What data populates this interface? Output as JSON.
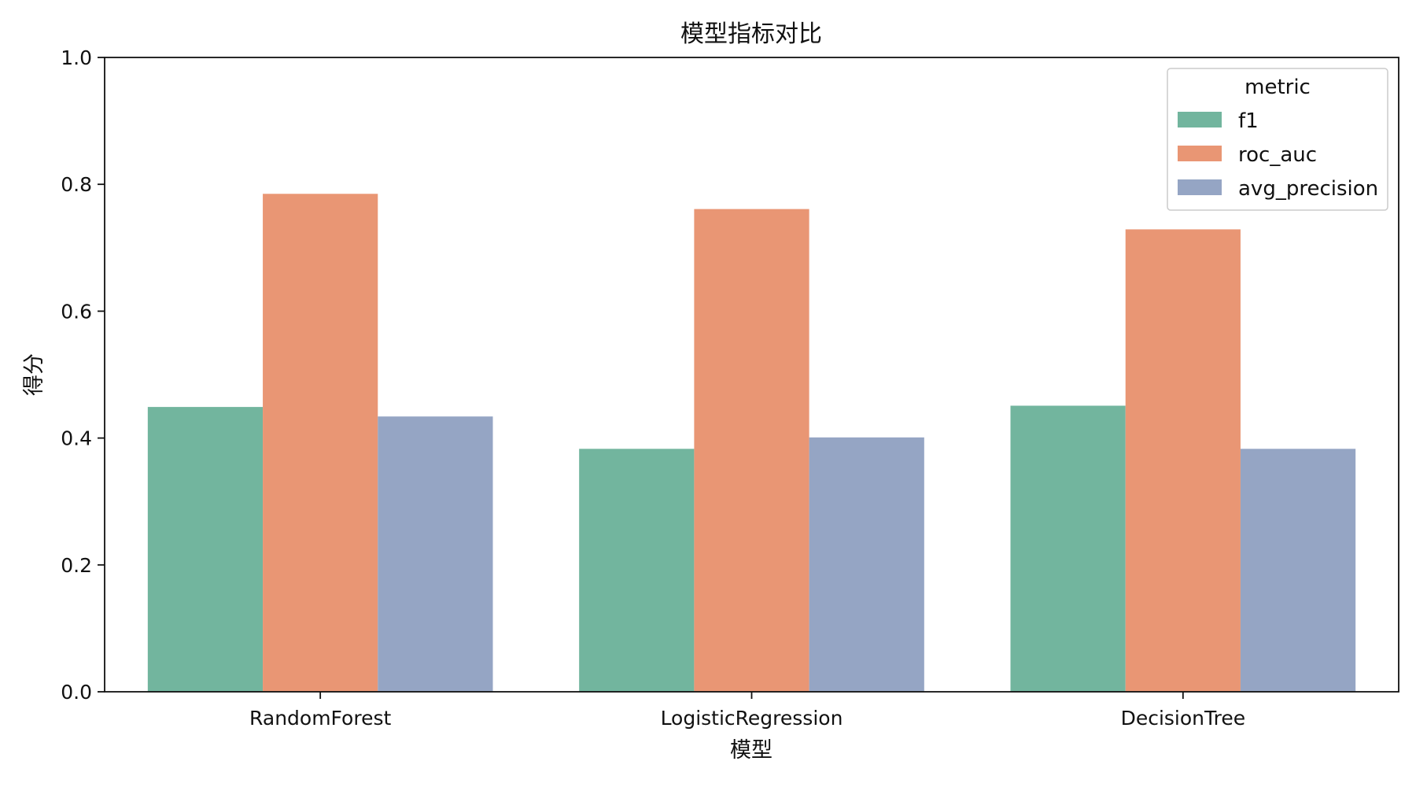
{
  "chart_data": {
    "type": "bar",
    "title": "模型指标对比",
    "xlabel": "模型",
    "ylabel": "得分",
    "categories": [
      "RandomForest",
      "LogisticRegression",
      "DecisionTree"
    ],
    "series": [
      {
        "name": "f1",
        "values": [
          0.449,
          0.383,
          0.451
        ],
        "color": "#72b59e"
      },
      {
        "name": "roc_auc",
        "values": [
          0.785,
          0.761,
          0.729
        ],
        "color": "#e99674"
      },
      {
        "name": "avg_precision",
        "values": [
          0.434,
          0.401,
          0.383
        ],
        "color": "#95a5c4"
      }
    ],
    "ylim": [
      0,
      1.0
    ],
    "yticks": [
      "0.0",
      "0.2",
      "0.4",
      "0.6",
      "0.8",
      "1.0"
    ],
    "ytick_values": [
      0,
      0.2,
      0.4,
      0.6,
      0.8,
      1.0
    ],
    "legend": {
      "title": "metric",
      "position": "top-right"
    },
    "grid": false
  }
}
